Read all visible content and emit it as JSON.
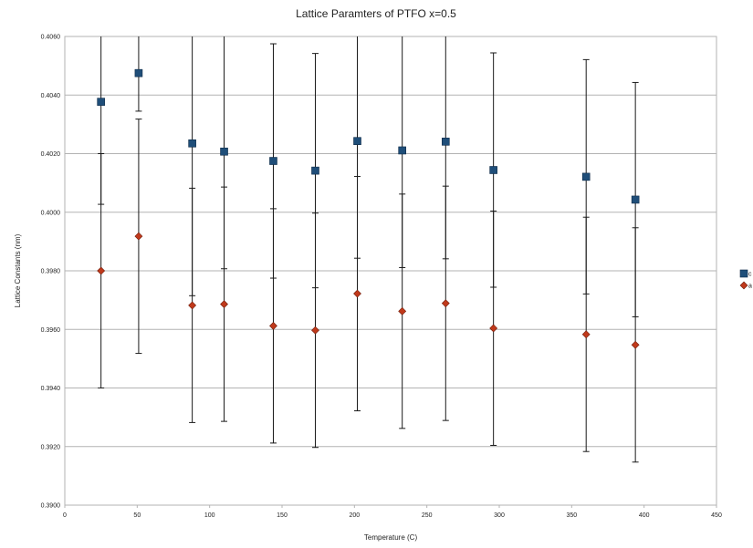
{
  "chart_data": {
    "type": "scatter",
    "title": "Lattice Paramters of PTFO x=0.5",
    "xlabel": "Temperature (C)",
    "ylabel": "Lattice Constants (nm)",
    "xlim": [
      0,
      450
    ],
    "ylim": [
      0.39,
      0.406
    ],
    "x_ticks": [
      "0",
      "50",
      "100",
      "150",
      "200",
      "250",
      "300",
      "350",
      "400",
      "450"
    ],
    "y_ticks": [
      "0.3900",
      "0.3920",
      "0.3940",
      "0.3960",
      "0.3980",
      "0.4000",
      "0.4020",
      "0.4040",
      "0.4060"
    ],
    "grid": "horizontal",
    "legend_position": "right",
    "series": [
      {
        "name": "c",
        "color": "#1f4e79",
        "marker": "square",
        "points": [
          {
            "x": 25,
            "y": 0.40377,
            "err": 0.0035
          },
          {
            "x": 51,
            "y": 0.40475,
            "err": 0.0013
          },
          {
            "x": 88,
            "y": 0.40235,
            "err": 0.0052
          },
          {
            "x": 110,
            "y": 0.40207,
            "err": 0.004
          },
          {
            "x": 144,
            "y": 0.40175,
            "err": 0.004
          },
          {
            "x": 173,
            "y": 0.40142,
            "err": 0.004
          },
          {
            "x": 202,
            "y": 0.40243,
            "err": 0.004
          },
          {
            "x": 233,
            "y": 0.40211,
            "err": 0.004
          },
          {
            "x": 263,
            "y": 0.40241,
            "err": 0.004
          },
          {
            "x": 296,
            "y": 0.40144,
            "err": 0.004
          },
          {
            "x": 360,
            "y": 0.40121,
            "err": 0.004
          },
          {
            "x": 394,
            "y": 0.40043,
            "err": 0.004
          }
        ]
      },
      {
        "name": "a",
        "color": "#c0391b",
        "marker": "diamond",
        "points": [
          {
            "x": 25,
            "y": 0.398,
            "err": 0.004
          },
          {
            "x": 51,
            "y": 0.39918,
            "err": 0.004
          },
          {
            "x": 88,
            "y": 0.39682,
            "err": 0.004
          },
          {
            "x": 110,
            "y": 0.39686,
            "err": 0.004
          },
          {
            "x": 144,
            "y": 0.39612,
            "err": 0.004
          },
          {
            "x": 173,
            "y": 0.39597,
            "err": 0.004
          },
          {
            "x": 202,
            "y": 0.39722,
            "err": 0.004
          },
          {
            "x": 233,
            "y": 0.39662,
            "err": 0.004
          },
          {
            "x": 263,
            "y": 0.39689,
            "err": 0.004
          },
          {
            "x": 296,
            "y": 0.39604,
            "err": 0.004
          },
          {
            "x": 360,
            "y": 0.39583,
            "err": 0.004
          },
          {
            "x": 394,
            "y": 0.39547,
            "err": 0.004
          }
        ]
      }
    ]
  }
}
